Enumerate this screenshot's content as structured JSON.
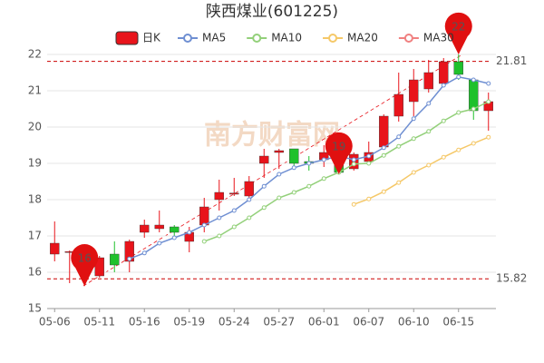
{
  "chart_data": {
    "type": "candlestick",
    "title": "陕西煤业(601225)",
    "watermark": "南方财富网",
    "candle_name": "日K",
    "up_color": "#e8141b",
    "down_color": "#1fc12c",
    "categories": [
      "05-06",
      null,
      null,
      "05-11",
      null,
      null,
      "05-16",
      null,
      null,
      "05-19",
      null,
      null,
      "05-24",
      null,
      null,
      "05-27",
      null,
      null,
      "06-01",
      null,
      null,
      "06-07",
      null,
      null,
      "06-10",
      null,
      null,
      "06-15",
      null,
      null
    ],
    "open": [
      16.5,
      16.55,
      15.9,
      15.9,
      16.5,
      16.3,
      17.1,
      17.2,
      17.25,
      16.85,
      17.3,
      18.0,
      18.15,
      18.1,
      19.0,
      19.3,
      19.4,
      19.05,
      19.1,
      19.35,
      18.85,
      19.05,
      19.45,
      20.3,
      20.7,
      21.05,
      21.2,
      21.8,
      21.3,
      20.45
    ],
    "close": [
      16.8,
      16.57,
      16.3,
      16.4,
      16.2,
      16.85,
      17.3,
      17.3,
      17.1,
      17.1,
      17.8,
      18.2,
      18.18,
      18.5,
      19.2,
      19.35,
      19.0,
      19.0,
      19.3,
      18.75,
      19.25,
      19.3,
      20.3,
      20.9,
      21.3,
      21.5,
      21.8,
      21.45,
      20.45,
      20.7
    ],
    "high": [
      17.4,
      16.6,
      16.4,
      16.45,
      16.85,
      16.9,
      17.45,
      17.7,
      17.3,
      17.25,
      18.05,
      18.55,
      18.6,
      18.65,
      19.4,
      19.4,
      19.4,
      19.2,
      19.5,
      19.4,
      19.3,
      19.6,
      20.35,
      21.5,
      21.6,
      21.85,
      21.9,
      22.0,
      21.35,
      20.95
    ],
    "low": [
      16.3,
      15.7,
      15.62,
      15.85,
      16.0,
      16.0,
      16.95,
      17.1,
      17.0,
      16.55,
      17.1,
      17.7,
      18.1,
      18.05,
      18.6,
      18.85,
      18.85,
      18.8,
      18.9,
      18.7,
      18.8,
      18.95,
      19.4,
      20.15,
      20.3,
      20.95,
      21.1,
      21.3,
      20.2,
      19.9
    ],
    "series": [
      {
        "name": "MA5",
        "color": "#6f8fd2",
        "values": [
          null,
          null,
          null,
          null,
          null,
          16.37,
          16.53,
          16.8,
          16.95,
          17.1,
          17.3,
          17.5,
          17.7,
          18.0,
          18.37,
          18.7,
          18.88,
          19.0,
          19.1,
          19.2,
          19.1,
          19.2,
          19.43,
          19.73,
          20.23,
          20.65,
          21.15,
          21.38,
          21.3,
          21.2
        ]
      },
      {
        "name": "MA10",
        "color": "#93d07a",
        "values": [
          null,
          null,
          null,
          null,
          null,
          null,
          null,
          null,
          null,
          null,
          16.85,
          17.0,
          17.25,
          17.5,
          17.78,
          18.05,
          18.2,
          18.37,
          18.58,
          18.75,
          18.98,
          19.0,
          19.22,
          19.47,
          19.68,
          19.88,
          20.17,
          20.4,
          20.5,
          20.7
        ]
      },
      {
        "name": "MA20",
        "color": "#f5c868",
        "values": [
          null,
          null,
          null,
          null,
          null,
          null,
          null,
          null,
          null,
          null,
          null,
          null,
          null,
          null,
          null,
          null,
          null,
          null,
          null,
          null,
          17.87,
          18.02,
          18.22,
          18.47,
          18.75,
          18.95,
          19.17,
          19.37,
          19.55,
          19.72
        ]
      },
      {
        "name": "MA30",
        "color": "#f08080",
        "values": [
          null,
          null,
          null,
          null,
          null,
          null,
          null,
          null,
          null,
          null,
          null,
          null,
          null,
          null,
          null,
          null,
          null,
          null,
          null,
          null,
          null,
          null,
          null,
          null,
          null,
          null,
          null,
          null,
          null,
          null
        ]
      }
    ],
    "reference_lines": [
      21.81,
      15.82
    ],
    "markers": [
      {
        "label": "22",
        "value": 22.0
      },
      {
        "label": "16",
        "value": 15.62
      },
      {
        "label": "19",
        "value": 18.7
      }
    ],
    "ylim": [
      15,
      22
    ],
    "yticks": [
      15,
      16,
      17,
      18,
      19,
      20,
      21,
      22
    ],
    "grid": true
  }
}
